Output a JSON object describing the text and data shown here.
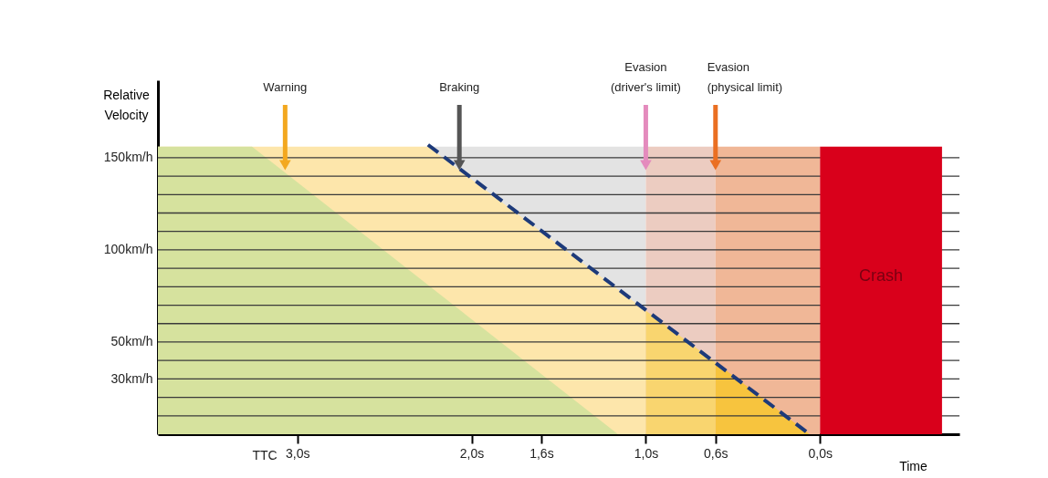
{
  "chart_data": {
    "type": "area",
    "xlabel": "Time",
    "ylabel": "Relative Velocity",
    "xlim": [
      3.8,
      -0.8
    ],
    "ylim": [
      0,
      192
    ],
    "xticks": [
      {
        "value": 3,
        "label": "3,0s"
      },
      {
        "value": 2,
        "label": "2,0s"
      },
      {
        "value": 1.6,
        "label": "1,6s"
      },
      {
        "value": 1,
        "label": "1,0s"
      },
      {
        "value": 0.6,
        "label": "0,6s"
      },
      {
        "value": 0,
        "label": "0,0s"
      }
    ],
    "yticks": [
      {
        "value": 10,
        "label": null
      },
      {
        "value": 20,
        "label": null
      },
      {
        "value": 30,
        "label": "30km/h"
      },
      {
        "value": 40,
        "label": null
      },
      {
        "value": 50,
        "label": "50km/h"
      },
      {
        "value": 60,
        "label": null
      },
      {
        "value": 70,
        "label": null
      },
      {
        "value": 80,
        "label": null
      },
      {
        "value": 90,
        "label": null
      },
      {
        "value": 100,
        "label": "100km/h"
      },
      {
        "value": 110,
        "label": null
      },
      {
        "value": 120,
        "label": null
      },
      {
        "value": 130,
        "label": null
      },
      {
        "value": 140,
        "label": null
      },
      {
        "value": 150,
        "label": "150km/h"
      }
    ],
    "grid": "y",
    "series": [
      {
        "color": "#e3e3e3",
        "x": [
          2.25,
          1.0
        ],
        "values": [
          156,
          156
        ]
      },
      {
        "color": "#ecccc1",
        "x": [
          1.0,
          0.6
        ],
        "values": [
          156,
          156
        ]
      },
      {
        "color": "#f0b797",
        "x": [
          0.6,
          0.0
        ],
        "values": [
          156,
          156
        ]
      },
      {
        "color": "#fde6ab",
        "x": [
          3.8,
          2.25,
          1.0
        ],
        "values": [
          156,
          156,
          67
        ]
      },
      {
        "color": "#f9d56f",
        "x": [
          1.0,
          0.6
        ],
        "values": [
          67,
          39
        ]
      },
      {
        "color": "#f7c43e",
        "x": [
          0.6,
          0.06
        ],
        "values": [
          39,
          0
        ]
      },
      {
        "color": "#d6e29e",
        "x": [
          3.8,
          3.26,
          1.16
        ],
        "values": [
          156,
          156,
          0
        ]
      },
      {
        "name": "Crash",
        "color": "#d9001b",
        "x": [
          0.0,
          -0.7
        ],
        "values": [
          156,
          156
        ]
      },
      {
        "type": "line",
        "color": "#1d3a7a",
        "line_style": "dashed",
        "x": [
          2.25,
          0.06
        ],
        "values": [
          157,
          0
        ]
      }
    ],
    "annotations": [
      {
        "text": "Warning",
        "x": 3.07,
        "y": 143
      },
      {
        "text": "Braking",
        "x": 2.07,
        "y": 143
      },
      {
        "text": "Evasion (driver's limit)",
        "x": 1.0,
        "y": 143
      },
      {
        "text": "Evasion (physical limit)",
        "x": 0.6,
        "y": 143
      },
      "TTC"
    ]
  }
}
